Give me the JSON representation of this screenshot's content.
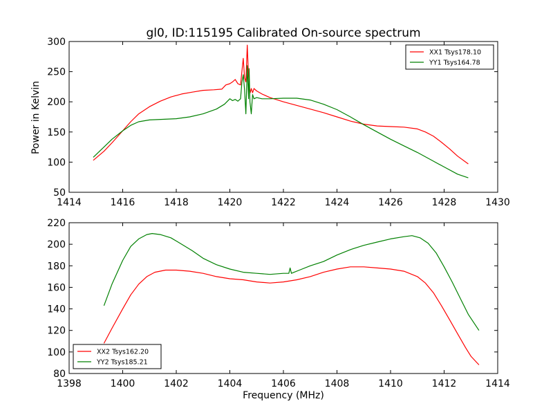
{
  "chart_data": [
    {
      "type": "line",
      "title": "gl0, ID:115195 Calibrated On-source spectrum",
      "xlabel": "",
      "ylabel": "Power in Kelvin",
      "xlim": [
        1414,
        1430
      ],
      "ylim": [
        50,
        300
      ],
      "xticks": [
        1414,
        1416,
        1418,
        1420,
        1422,
        1424,
        1426,
        1428,
        1430
      ],
      "yticks": [
        50,
        100,
        150,
        200,
        250,
        300
      ],
      "grid": false,
      "legend_position": "top-right",
      "series": [
        {
          "name": "XX1 Tsys178.10",
          "color": "#ff0000",
          "x": [
            1414.9,
            1415.3,
            1415.6,
            1416.0,
            1416.3,
            1416.6,
            1417.0,
            1417.4,
            1417.8,
            1418.2,
            1418.6,
            1419.0,
            1419.4,
            1419.7,
            1419.85,
            1420.0,
            1420.1,
            1420.2,
            1420.3,
            1420.4,
            1420.45,
            1420.5,
            1420.55,
            1420.6,
            1420.65,
            1420.68,
            1420.72,
            1420.76,
            1420.8,
            1420.85,
            1420.9,
            1421.0,
            1421.2,
            1421.5,
            1422.0,
            1422.5,
            1423.0,
            1423.5,
            1424.0,
            1424.5,
            1425.0,
            1425.5,
            1426.0,
            1426.5,
            1427.0,
            1427.3,
            1427.6,
            1427.9,
            1428.2,
            1428.5,
            1428.9
          ],
          "y": [
            103,
            118,
            132,
            152,
            167,
            180,
            192,
            201,
            208,
            213,
            216,
            219,
            220,
            221,
            228,
            230,
            233,
            237,
            230,
            228,
            250,
            272,
            240,
            233,
            294,
            260,
            225,
            215,
            222,
            215,
            222,
            218,
            213,
            207,
            200,
            194,
            188,
            182,
            175,
            168,
            163,
            160,
            159,
            158,
            155,
            150,
            143,
            133,
            122,
            110,
            97
          ]
        },
        {
          "name": "YY1 Tsys164.78",
          "color": "#008000",
          "x": [
            1414.9,
            1415.3,
            1415.6,
            1416.0,
            1416.3,
            1416.6,
            1417.0,
            1417.5,
            1418.0,
            1418.5,
            1419.0,
            1419.5,
            1419.8,
            1420.0,
            1420.1,
            1420.2,
            1420.3,
            1420.4,
            1420.45,
            1420.5,
            1420.55,
            1420.6,
            1420.65,
            1420.7,
            1420.72,
            1420.75,
            1420.8,
            1420.85,
            1420.9,
            1421.0,
            1421.2,
            1421.5,
            1422.0,
            1422.5,
            1423.0,
            1423.5,
            1424.0,
            1424.5,
            1425.0,
            1425.5,
            1426.0,
            1426.5,
            1427.0,
            1427.5,
            1428.0,
            1428.5,
            1428.9
          ],
          "y": [
            108,
            125,
            138,
            152,
            161,
            167,
            170,
            171,
            172,
            175,
            180,
            188,
            196,
            205,
            202,
            204,
            201,
            205,
            232,
            245,
            220,
            180,
            260,
            205,
            255,
            200,
            180,
            212,
            205,
            207,
            205,
            205,
            206,
            206,
            203,
            196,
            187,
            175,
            162,
            150,
            138,
            127,
            116,
            104,
            92,
            80,
            74
          ]
        }
      ]
    },
    {
      "type": "line",
      "title": "",
      "xlabel": "Frequency (MHz)",
      "ylabel": "",
      "xlim": [
        1398,
        1414
      ],
      "ylim": [
        80,
        220
      ],
      "xticks": [
        1398,
        1400,
        1402,
        1404,
        1406,
        1408,
        1410,
        1412,
        1414
      ],
      "yticks": [
        80,
        100,
        120,
        140,
        160,
        180,
        200,
        220
      ],
      "grid": false,
      "legend_position": "bottom-left",
      "series": [
        {
          "name": "XX2 Tsys162.20",
          "color": "#ff0000",
          "x": [
            1399.3,
            1399.6,
            1400.0,
            1400.3,
            1400.6,
            1400.9,
            1401.2,
            1401.6,
            1402.0,
            1402.5,
            1403.0,
            1403.5,
            1404.0,
            1404.5,
            1405.0,
            1405.5,
            1406.0,
            1406.5,
            1407.0,
            1407.5,
            1408.0,
            1408.5,
            1409.0,
            1409.5,
            1410.0,
            1410.5,
            1411.0,
            1411.3,
            1411.6,
            1411.9,
            1412.2,
            1412.5,
            1412.8,
            1413.0,
            1413.3
          ],
          "y": [
            108,
            122,
            140,
            153,
            163,
            170,
            174,
            176,
            176,
            175,
            173,
            170,
            168,
            167,
            165,
            164,
            165,
            167,
            170,
            174,
            177,
            179,
            179,
            178,
            177,
            175,
            170,
            164,
            155,
            143,
            130,
            117,
            104,
            96,
            88
          ]
        },
        {
          "name": "YY2 Tsys185.21",
          "color": "#008000",
          "x": [
            1399.3,
            1399.6,
            1400.0,
            1400.3,
            1400.6,
            1400.9,
            1401.1,
            1401.4,
            1401.8,
            1402.2,
            1402.6,
            1403.0,
            1403.5,
            1404.0,
            1404.5,
            1405.0,
            1405.5,
            1406.0,
            1406.2,
            1406.25,
            1406.3,
            1406.4,
            1406.6,
            1407.0,
            1407.5,
            1408.0,
            1408.5,
            1409.0,
            1409.5,
            1410.0,
            1410.5,
            1410.8,
            1411.1,
            1411.4,
            1411.7,
            1412.0,
            1412.3,
            1412.6,
            1412.9,
            1413.3
          ],
          "y": [
            143,
            163,
            185,
            198,
            205,
            209,
            210,
            209,
            206,
            200,
            194,
            187,
            181,
            177,
            174,
            173,
            172,
            173,
            173,
            178,
            173,
            174,
            176,
            180,
            184,
            190,
            195,
            199,
            202,
            205,
            207,
            208,
            206,
            201,
            192,
            179,
            165,
            150,
            135,
            120
          ]
        }
      ]
    }
  ]
}
